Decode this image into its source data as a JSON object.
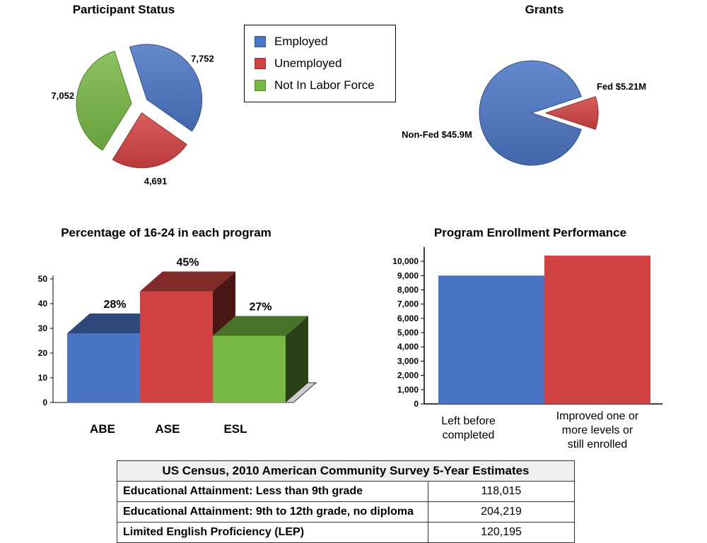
{
  "colors": {
    "blue": "#4a74c4",
    "red": "#d24242",
    "green": "#76b843"
  },
  "legend": [
    {
      "label": "Employed",
      "color": "#4a74c4"
    },
    {
      "label": "Unemployed",
      "color": "#d24242"
    },
    {
      "label": "Not In Labor Force",
      "color": "#76b843"
    }
  ],
  "chart_data": [
    {
      "type": "pie",
      "title": "Participant Status",
      "labels": [
        "Employed",
        "Unemployed",
        "Not In Labor Force"
      ],
      "values": [
        7752,
        4691,
        7052
      ],
      "value_labels": [
        "7,752",
        "4,691",
        "7,052"
      ],
      "exploded": true
    },
    {
      "type": "pie",
      "title": "Grants",
      "labels": [
        "Non-Fed",
        "Fed"
      ],
      "values": [
        45.9,
        5.21
      ],
      "value_labels": [
        "Non-Fed $45.9M",
        "Fed $5.21M"
      ],
      "exploded": true
    },
    {
      "type": "bar",
      "style": "3d",
      "title": "Percentage of 16-24 in each program",
      "categories": [
        "ABE",
        "ASE",
        "ESL"
      ],
      "values": [
        28,
        45,
        27
      ],
      "value_labels": [
        "28%",
        "45%",
        "27%"
      ],
      "ylim": [
        0,
        50
      ],
      "yticks": [
        "0",
        "10",
        "20",
        "30",
        "40",
        "50"
      ]
    },
    {
      "type": "bar",
      "title": "Program Enrollment Performance",
      "categories": [
        "Left before completed",
        "Improved one or more levels or still enrolled"
      ],
      "category_lines": [
        [
          "Left before",
          "completed"
        ],
        [
          "Improved one or",
          "more levels or",
          "still enrolled"
        ]
      ],
      "values": [
        9000,
        10400
      ],
      "ylim": [
        0,
        10400
      ],
      "yticks": [
        "0",
        "1,000",
        "2,000",
        "3,000",
        "4,000",
        "5,000",
        "6,000",
        "7,000",
        "8,000",
        "9,000",
        "10,000"
      ]
    }
  ],
  "table": {
    "header": "US Census, 2010 American Community Survey 5-Year Estimates",
    "rows": [
      {
        "label": "Educational Attainment: Less than 9th grade",
        "value": "118,015"
      },
      {
        "label": "Educational Attainment: 9th to 12th grade, no diploma",
        "value": "204,219"
      },
      {
        "label": "Limited English Proficiency (LEP)",
        "value": "120,195"
      }
    ]
  }
}
